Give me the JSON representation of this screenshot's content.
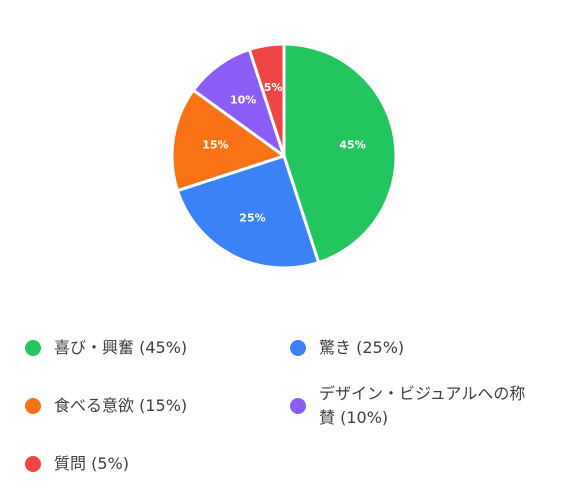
{
  "chart_data": {
    "type": "pie",
    "title": "",
    "slices": [
      {
        "label": "喜び・興奮",
        "value": 45,
        "data_label": "45%",
        "legend_label": "喜び・興奮 (45%)",
        "color": "#22c55e"
      },
      {
        "label": "驚き",
        "value": 25,
        "data_label": "25%",
        "legend_label": "驚き (25%)",
        "color": "#3b82f6"
      },
      {
        "label": "食べる意欲",
        "value": 15,
        "data_label": "15%",
        "legend_label": "食べる意欲 (15%)",
        "color": "#f97316"
      },
      {
        "label": "デザイン・ビジュアルへの称賛",
        "value": 10,
        "data_label": "10%",
        "legend_label": "デザイン・ビジュアルへの称賛 (10%)",
        "color": "#8b5cf6"
      },
      {
        "label": "質問",
        "value": 5,
        "data_label": "5%",
        "legend_label": "質問 (5%)",
        "color": "#ef4444"
      }
    ],
    "start": "top",
    "direction": "clockwise",
    "legend_position": "bottom"
  }
}
